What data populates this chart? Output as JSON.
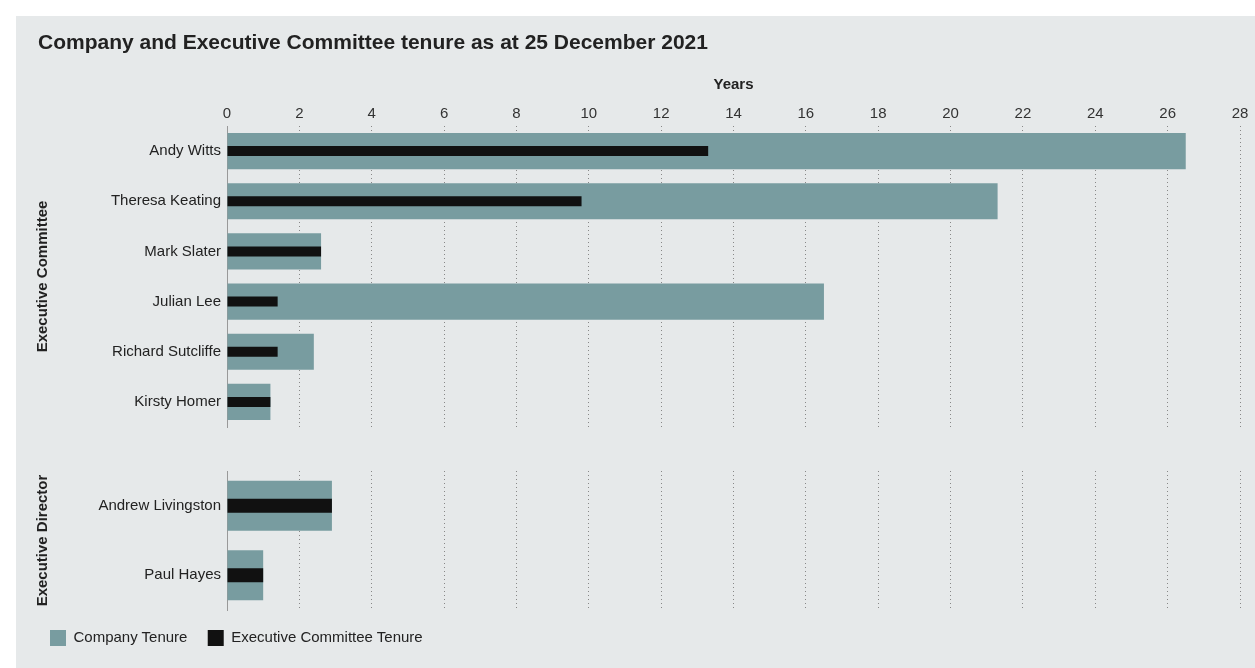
{
  "chart_data": [
    {
      "type": "bar",
      "orientation": "horizontal",
      "title": "Company and Executive Committee tenure as at 25 December 2021",
      "xlabel": "Years",
      "ylabel": "Executive Committee",
      "categories": [
        "Andy Witts",
        "Theresa Keating",
        "Mark Slater",
        "Julian Lee",
        "Richard Sutcliffe",
        "Kirsty Homer"
      ],
      "series": [
        {
          "color": "#789ca0",
          "values": [
            26.5,
            21.3,
            2.6,
            16.5,
            2.4,
            1.2
          ]
        },
        {
          "color": "#111111",
          "values": [
            13.3,
            9.8,
            2.6,
            1.4,
            1.4,
            1.2
          ]
        }
      ],
      "xlim": [
        0,
        28
      ],
      "xticks": [
        0,
        2,
        4,
        6,
        8,
        10,
        12,
        14,
        16,
        18,
        20,
        22,
        24,
        26,
        28
      ],
      "grid": "x",
      "legend": false
    },
    {
      "type": "bar",
      "orientation": "horizontal",
      "ylabel": "Executive Director",
      "categories": [
        "Andrew Livingston",
        "Paul Hayes"
      ],
      "series": [
        {
          "name": "Company Tenure",
          "color": "#789ca0",
          "values": [
            2.9,
            1.0
          ]
        },
        {
          "name": "Executive Committee Tenure",
          "color": "#111111",
          "values": [
            2.9,
            1.0
          ]
        }
      ],
      "xlim": [
        0,
        28
      ],
      "xticks": [
        0,
        2,
        4,
        6,
        8,
        10,
        12,
        14,
        16,
        18,
        20,
        22,
        24,
        26,
        28
      ],
      "grid": "x",
      "legend": "bottom left",
      "tick_labels": "y"
    }
  ]
}
